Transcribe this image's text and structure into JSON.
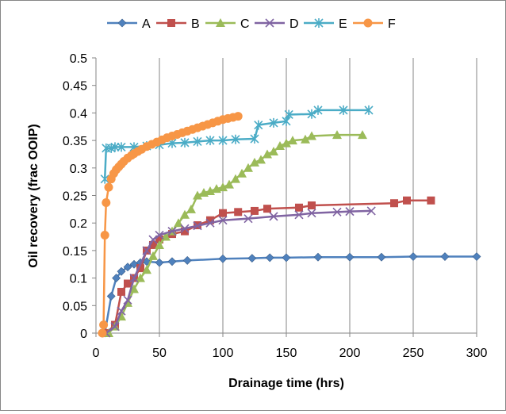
{
  "chart_data": {
    "type": "line",
    "title": "",
    "xlabel": "Drainage time (hrs)",
    "ylabel": "Oil recovery (frac OOIP)",
    "xlim": [
      0,
      300
    ],
    "ylim": [
      0,
      0.5
    ],
    "x_ticks": [
      0,
      50,
      100,
      150,
      200,
      250,
      300
    ],
    "y_ticks": [
      0,
      0.05,
      0.1,
      0.15,
      0.2,
      0.25,
      0.3,
      0.35,
      0.4,
      0.45,
      0.5
    ],
    "x_tick_labels": [
      "0",
      "50",
      "100",
      "150",
      "200",
      "250",
      "300"
    ],
    "y_tick_labels": [
      "0",
      "0.05",
      "0.1",
      "0.15",
      "0.2",
      "0.25",
      "0.3",
      "0.35",
      "0.4",
      "0.45",
      "0.5"
    ],
    "grid": "vertical",
    "legend_position": "top",
    "series": [
      {
        "name": "A",
        "color": "#4F81BD",
        "marker": "diamond",
        "points": [
          [
            7,
            0
          ],
          [
            12,
            0.067
          ],
          [
            16,
            0.1
          ],
          [
            20,
            0.112
          ],
          [
            25,
            0.12
          ],
          [
            30,
            0.125
          ],
          [
            35,
            0.128
          ],
          [
            40,
            0.13
          ],
          [
            50,
            0.128
          ],
          [
            60,
            0.13
          ],
          [
            72,
            0.132
          ],
          [
            100,
            0.135
          ],
          [
            123,
            0.136
          ],
          [
            137,
            0.137
          ],
          [
            150,
            0.137
          ],
          [
            175,
            0.138
          ],
          [
            200,
            0.138
          ],
          [
            225,
            0.138
          ],
          [
            250,
            0.139
          ],
          [
            275,
            0.139
          ],
          [
            300,
            0.139
          ]
        ]
      },
      {
        "name": "B",
        "color": "#C0504D",
        "marker": "square",
        "points": [
          [
            8,
            0
          ],
          [
            15,
            0.015
          ],
          [
            20,
            0.075
          ],
          [
            25,
            0.09
          ],
          [
            30,
            0.1
          ],
          [
            35,
            0.118
          ],
          [
            40,
            0.15
          ],
          [
            45,
            0.16
          ],
          [
            50,
            0.17
          ],
          [
            60,
            0.18
          ],
          [
            70,
            0.185
          ],
          [
            80,
            0.196
          ],
          [
            90,
            0.205
          ],
          [
            100,
            0.218
          ],
          [
            112,
            0.22
          ],
          [
            125,
            0.222
          ],
          [
            135,
            0.226
          ],
          [
            160,
            0.228
          ],
          [
            170,
            0.232
          ],
          [
            235,
            0.236
          ],
          [
            245,
            0.241
          ],
          [
            264,
            0.241
          ]
        ]
      },
      {
        "name": "C",
        "color": "#9BBB59",
        "marker": "triangle",
        "points": [
          [
            10,
            0
          ],
          [
            15,
            0.012
          ],
          [
            20,
            0.03
          ],
          [
            25,
            0.055
          ],
          [
            30,
            0.08
          ],
          [
            35,
            0.1
          ],
          [
            40,
            0.115
          ],
          [
            45,
            0.14
          ],
          [
            50,
            0.16
          ],
          [
            55,
            0.175
          ],
          [
            60,
            0.185
          ],
          [
            65,
            0.2
          ],
          [
            70,
            0.215
          ],
          [
            75,
            0.225
          ],
          [
            80,
            0.25
          ],
          [
            85,
            0.255
          ],
          [
            90,
            0.258
          ],
          [
            95,
            0.262
          ],
          [
            100,
            0.265
          ],
          [
            105,
            0.27
          ],
          [
            110,
            0.28
          ],
          [
            115,
            0.29
          ],
          [
            120,
            0.3
          ],
          [
            125,
            0.31
          ],
          [
            130,
            0.315
          ],
          [
            135,
            0.325
          ],
          [
            140,
            0.33
          ],
          [
            145,
            0.34
          ],
          [
            150,
            0.345
          ],
          [
            155,
            0.35
          ],
          [
            165,
            0.352
          ],
          [
            170,
            0.358
          ],
          [
            190,
            0.36
          ],
          [
            210,
            0.36
          ]
        ]
      },
      {
        "name": "D",
        "color": "#8064A2",
        "marker": "x",
        "points": [
          [
            8,
            0
          ],
          [
            15,
            0.012
          ],
          [
            20,
            0.04
          ],
          [
            25,
            0.06
          ],
          [
            30,
            0.1
          ],
          [
            40,
            0.15
          ],
          [
            45,
            0.17
          ],
          [
            50,
            0.178
          ],
          [
            60,
            0.185
          ],
          [
            70,
            0.19
          ],
          [
            80,
            0.195
          ],
          [
            90,
            0.2
          ],
          [
            100,
            0.205
          ],
          [
            120,
            0.208
          ],
          [
            140,
            0.212
          ],
          [
            160,
            0.215
          ],
          [
            170,
            0.218
          ],
          [
            190,
            0.22
          ],
          [
            200,
            0.221
          ],
          [
            217,
            0.222
          ]
        ]
      },
      {
        "name": "E",
        "color": "#4BACC6",
        "marker": "star",
        "points": [
          [
            7,
            0.28
          ],
          [
            8,
            0.336
          ],
          [
            12,
            0.336
          ],
          [
            15,
            0.338
          ],
          [
            20,
            0.338
          ],
          [
            30,
            0.338
          ],
          [
            40,
            0.34
          ],
          [
            50,
            0.342
          ],
          [
            60,
            0.345
          ],
          [
            70,
            0.346
          ],
          [
            80,
            0.348
          ],
          [
            90,
            0.35
          ],
          [
            100,
            0.35
          ],
          [
            110,
            0.352
          ],
          [
            125,
            0.353
          ],
          [
            128,
            0.378
          ],
          [
            140,
            0.382
          ],
          [
            150,
            0.385
          ],
          [
            152,
            0.397
          ],
          [
            170,
            0.398
          ],
          [
            175,
            0.405
          ],
          [
            195,
            0.405
          ],
          [
            215,
            0.405
          ]
        ]
      },
      {
        "name": "F",
        "color": "#F79646",
        "marker": "circle",
        "points": [
          [
            5,
            0
          ],
          [
            6,
            0.015
          ],
          [
            7,
            0.178
          ],
          [
            8,
            0.237
          ],
          [
            10,
            0.265
          ],
          [
            12,
            0.28
          ],
          [
            14,
            0.29
          ],
          [
            16,
            0.297
          ],
          [
            18,
            0.302
          ],
          [
            20,
            0.307
          ],
          [
            22,
            0.312
          ],
          [
            25,
            0.318
          ],
          [
            28,
            0.323
          ],
          [
            30,
            0.326
          ],
          [
            33,
            0.33
          ],
          [
            36,
            0.334
          ],
          [
            40,
            0.339
          ],
          [
            44,
            0.343
          ],
          [
            48,
            0.347
          ],
          [
            52,
            0.351
          ],
          [
            56,
            0.355
          ],
          [
            60,
            0.358
          ],
          [
            64,
            0.361
          ],
          [
            68,
            0.364
          ],
          [
            72,
            0.367
          ],
          [
            76,
            0.37
          ],
          [
            80,
            0.373
          ],
          [
            84,
            0.376
          ],
          [
            88,
            0.379
          ],
          [
            92,
            0.382
          ],
          [
            96,
            0.385
          ],
          [
            100,
            0.388
          ],
          [
            104,
            0.39
          ],
          [
            108,
            0.392
          ],
          [
            112,
            0.394
          ]
        ]
      }
    ]
  }
}
